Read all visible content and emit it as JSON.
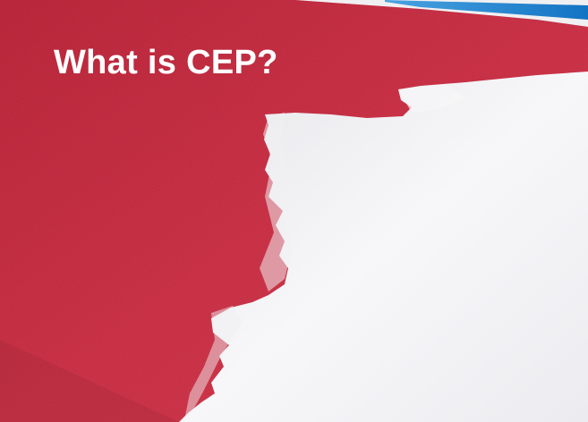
{
  "caption": {
    "text": "What is CEP?"
  },
  "colors": {
    "red_paint": "#c4283c",
    "red_paint_dark": "#a81c30",
    "white_paint": "#f4f4f6",
    "masking_tape": "#1a8ad8",
    "wall_edge": "#e8e8ea"
  }
}
